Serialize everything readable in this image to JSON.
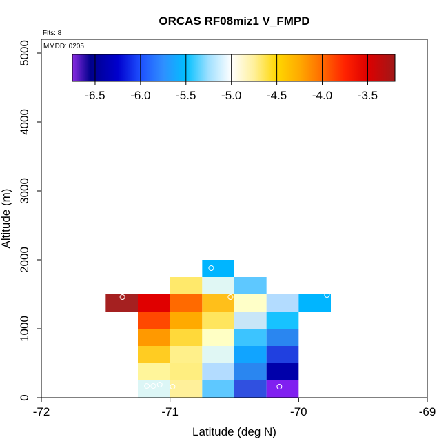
{
  "chart_data": {
    "type": "heatmap",
    "title": "ORCAS RF08miz1 V_FMPD",
    "xlabel": "Latitude (deg N)",
    "ylabel": "Altitude (m)",
    "xlim": [
      -72,
      -69
    ],
    "ylim": [
      0,
      5200
    ],
    "x_ticks": [
      -72,
      -71,
      -70,
      -69
    ],
    "x_tick_labels": [
      "-72",
      "-71",
      "-70",
      "-69"
    ],
    "y_ticks": [
      0,
      1000,
      2000,
      3000,
      4000,
      5000
    ],
    "y_tick_labels": [
      "0",
      "1000",
      "2000",
      "3000",
      "4000",
      "5000"
    ],
    "annotations": {
      "flights": "Flts: 8",
      "date": "MMDD: 0205"
    },
    "colorbar": {
      "min": -6.75,
      "max": -3.2,
      "ticks": [
        -6.5,
        -6.0,
        -5.5,
        -5.0,
        -4.5,
        -4.0,
        -3.5
      ],
      "tick_labels": [
        "-6.5",
        "-6.0",
        "-5.5",
        "-5.0",
        "-4.5",
        "-4.0",
        "-3.5"
      ],
      "stops": [
        [
          -6.75,
          "#8a2be2"
        ],
        [
          -6.55,
          "#00008b"
        ],
        [
          -6.25,
          "#0000cd"
        ],
        [
          -6.0,
          "#1e50ff"
        ],
        [
          -5.75,
          "#2f8fff"
        ],
        [
          -5.5,
          "#00bfff"
        ],
        [
          -5.25,
          "#a0e0ff"
        ],
        [
          -5.0,
          "#ffffff"
        ],
        [
          -4.75,
          "#fff09a"
        ],
        [
          -4.5,
          "#ffd700"
        ],
        [
          -4.25,
          "#ffaa00"
        ],
        [
          -4.0,
          "#ff6a00"
        ],
        [
          -3.75,
          "#ff2200"
        ],
        [
          -3.5,
          "#dd0000"
        ],
        [
          -3.2,
          "#a01818"
        ]
      ]
    },
    "cell_width_deg": 0.25,
    "cell_height_m": 250,
    "cells": [
      {
        "lat": -71.375,
        "alt": 1375,
        "color": "#a52020"
      },
      {
        "lat": -71.125,
        "alt": 1375,
        "color": "#e00000"
      },
      {
        "lat": -70.875,
        "alt": 1375,
        "color": "#ff6a00"
      },
      {
        "lat": -70.625,
        "alt": 1375,
        "color": "#ffbf1a"
      },
      {
        "lat": -70.375,
        "alt": 1375,
        "color": "#ffffc8"
      },
      {
        "lat": -70.125,
        "alt": 1375,
        "color": "#b3dcff"
      },
      {
        "lat": -69.875,
        "alt": 1375,
        "color": "#00b5ff"
      },
      {
        "lat": -70.625,
        "alt": 1875,
        "color": "#00b5ff"
      },
      {
        "lat": -70.875,
        "alt": 1625,
        "color": "#ffe96b"
      },
      {
        "lat": -70.625,
        "alt": 1625,
        "color": "#e0f7f4"
      },
      {
        "lat": -70.375,
        "alt": 1625,
        "color": "#5ec8ff"
      },
      {
        "lat": -71.125,
        "alt": 1125,
        "color": "#ff4800"
      },
      {
        "lat": -70.875,
        "alt": 1125,
        "color": "#ffaa00"
      },
      {
        "lat": -70.625,
        "alt": 1125,
        "color": "#ffe55e"
      },
      {
        "lat": -70.375,
        "alt": 1125,
        "color": "#c8e6f7"
      },
      {
        "lat": -70.125,
        "alt": 1125,
        "color": "#17c2ff"
      },
      {
        "lat": -71.125,
        "alt": 875,
        "color": "#ff9900"
      },
      {
        "lat": -70.875,
        "alt": 875,
        "color": "#ffd93a"
      },
      {
        "lat": -70.625,
        "alt": 875,
        "color": "#ffffc4"
      },
      {
        "lat": -70.375,
        "alt": 875,
        "color": "#3cc4ff"
      },
      {
        "lat": -70.125,
        "alt": 875,
        "color": "#2a86f0"
      },
      {
        "lat": -71.125,
        "alt": 625,
        "color": "#ffcc22"
      },
      {
        "lat": -70.875,
        "alt": 625,
        "color": "#fff08a"
      },
      {
        "lat": -70.625,
        "alt": 625,
        "color": "#e0f7f4"
      },
      {
        "lat": -70.375,
        "alt": 625,
        "color": "#11a4ff"
      },
      {
        "lat": -70.125,
        "alt": 625,
        "color": "#2040e0"
      },
      {
        "lat": -71.125,
        "alt": 375,
        "color": "#fff59a"
      },
      {
        "lat": -70.875,
        "alt": 375,
        "color": "#ffee80"
      },
      {
        "lat": -70.625,
        "alt": 375,
        "color": "#b3dcff"
      },
      {
        "lat": -70.375,
        "alt": 375,
        "color": "#2a86f0"
      },
      {
        "lat": -70.125,
        "alt": 375,
        "color": "#0000aa"
      },
      {
        "lat": -71.125,
        "alt": 125,
        "color": "#dcf6f6"
      },
      {
        "lat": -70.875,
        "alt": 125,
        "color": "#fff09a"
      },
      {
        "lat": -70.625,
        "alt": 125,
        "color": "#5ec8ff"
      },
      {
        "lat": -70.375,
        "alt": 125,
        "color": "#3050e0"
      },
      {
        "lat": -70.125,
        "alt": 125,
        "color": "#8020f0"
      }
    ],
    "points": [
      {
        "lat": -71.37,
        "alt": 1460
      },
      {
        "lat": -70.68,
        "alt": 1880
      },
      {
        "lat": -70.53,
        "alt": 1460
      },
      {
        "lat": -69.78,
        "alt": 1490
      },
      {
        "lat": -71.18,
        "alt": 170
      },
      {
        "lat": -71.13,
        "alt": 170
      },
      {
        "lat": -71.08,
        "alt": 190
      },
      {
        "lat": -70.98,
        "alt": 160
      },
      {
        "lat": -70.15,
        "alt": 160
      }
    ]
  }
}
